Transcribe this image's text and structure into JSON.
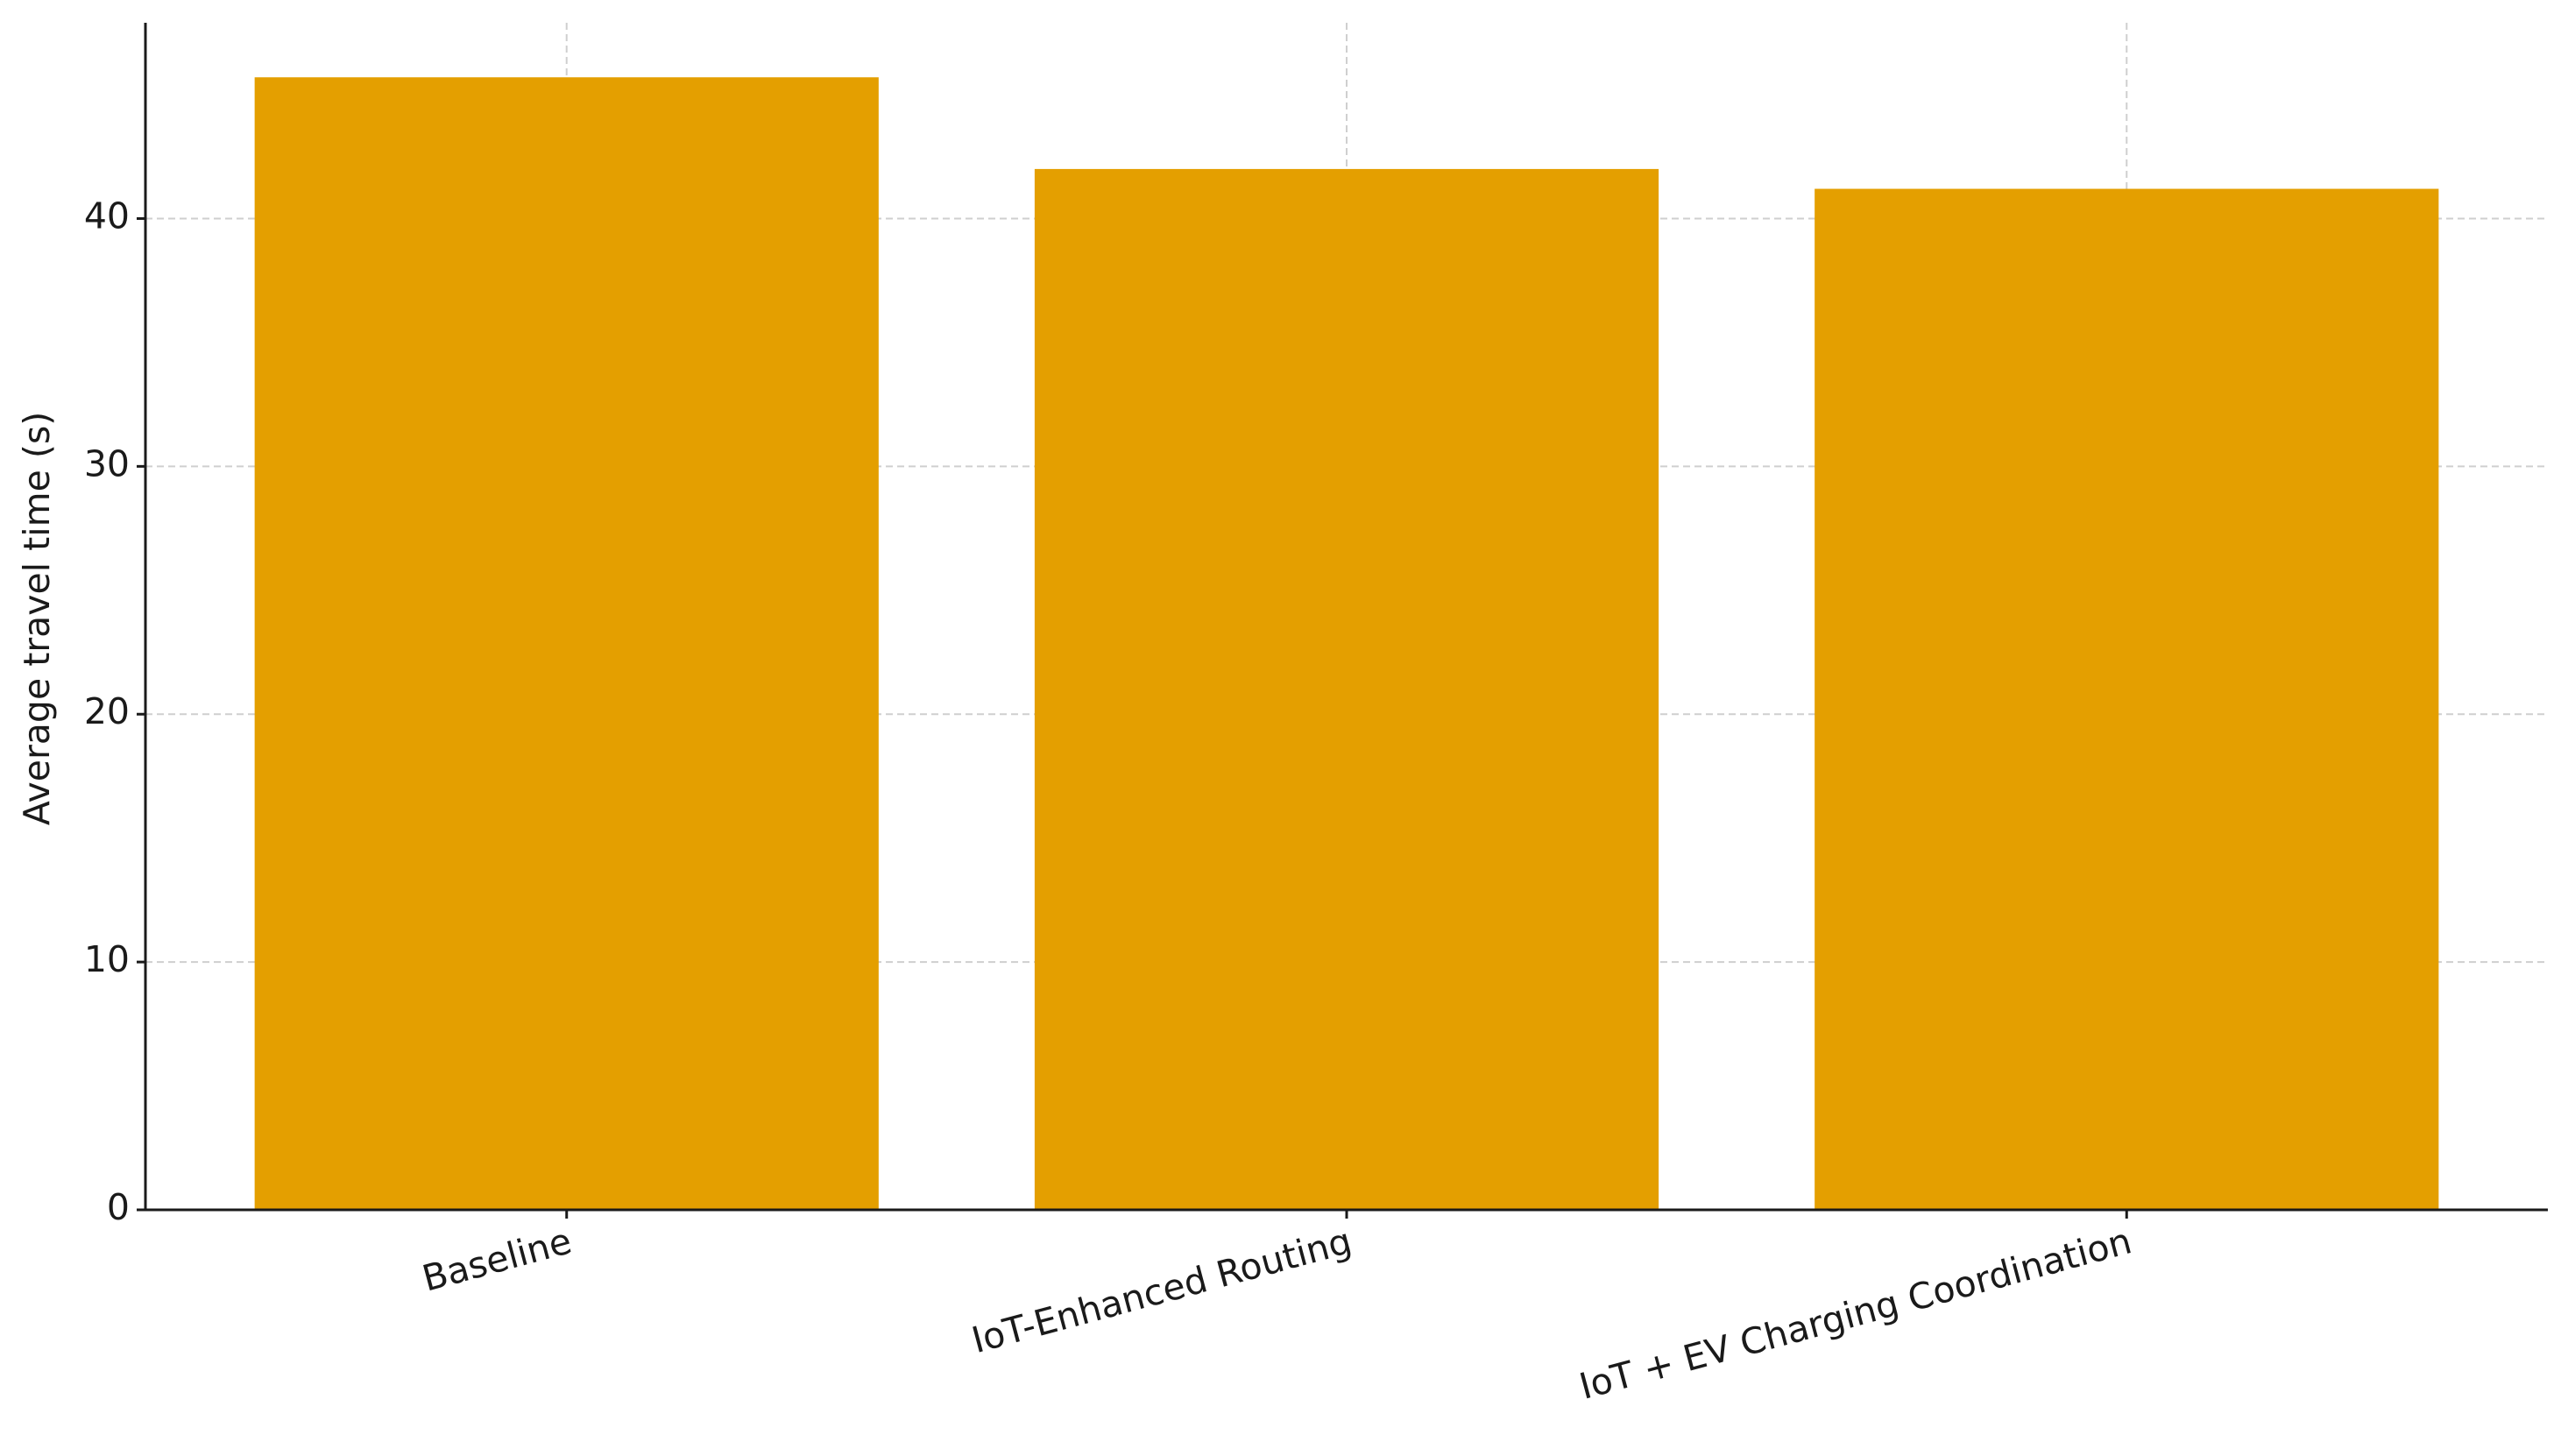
{
  "chart_data": {
    "type": "bar",
    "y_label": "Average travel time (s)",
    "categories": [
      "Baseline",
      "IoT-Enhanced Routing",
      "IoT + EV Charging Coordination"
    ],
    "values": [
      45.7,
      42.0,
      41.2
    ],
    "color": "#e49f00",
    "ylim": [
      0,
      47.9
    ],
    "yticks": [
      0,
      10,
      20,
      30,
      40
    ],
    "grid": true
  }
}
